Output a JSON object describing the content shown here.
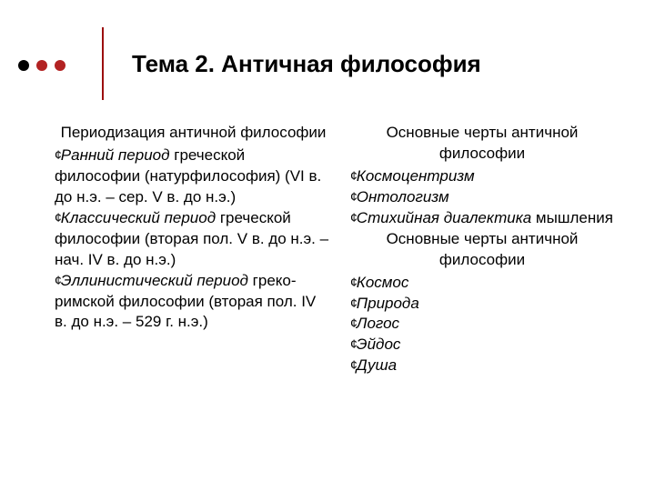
{
  "decor": {
    "bullet_colors": [
      "#000000",
      "#b22222",
      "#b22222"
    ],
    "vline_color": "#9c0f0f"
  },
  "title": "Тема 2. Античная философия",
  "left": {
    "heading": "Периодизация античной философии",
    "items": [
      {
        "em": "Ранний период",
        "rest": " греческой философии (натурфилософия) (VI в. до н.э. – сер. V в. до н.э.)"
      },
      {
        "em": "Классический период",
        "rest": " греческой философии (вторая пол. V в. до н.э. – нач. IV в. до н.э.)"
      },
      {
        "em": "Эллинистический период",
        "rest": " греко-римской философии (вторая пол. IV в. до н.э. – 529 г. н.э.)"
      }
    ]
  },
  "right": {
    "heading1": "Основные черты античной философии",
    "list1": [
      {
        "em": "Космоцентризм",
        "rest": ""
      },
      {
        "em": "Онтологизм",
        "rest": ""
      },
      {
        "em": "Стихийная диалектика",
        "rest": " мышления"
      }
    ],
    "heading2": "Основные черты античной философии",
    "list2": [
      {
        "em": "Космос",
        "rest": ""
      },
      {
        "em": "Природа",
        "rest": ""
      },
      {
        "em": "Логос",
        "rest": ""
      },
      {
        "em": "Эйдос",
        "rest": ""
      },
      {
        "em": "Душа",
        "rest": ""
      }
    ]
  },
  "bullet_char": "¢"
}
